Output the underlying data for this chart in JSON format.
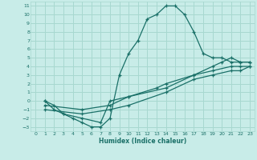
{
  "xlabel": "Humidex (Indice chaleur)",
  "bg_color": "#c8ece8",
  "grid_color": "#a8d8d0",
  "line_color": "#1a7068",
  "xlim": [
    -0.5,
    23.5
  ],
  "ylim": [
    -3.5,
    11.5
  ],
  "xticks": [
    0,
    1,
    2,
    3,
    4,
    5,
    6,
    7,
    8,
    9,
    10,
    11,
    12,
    13,
    14,
    15,
    16,
    17,
    18,
    19,
    20,
    21,
    22,
    23
  ],
  "yticks": [
    -3,
    -2,
    -1,
    0,
    1,
    2,
    3,
    4,
    5,
    6,
    7,
    8,
    9,
    10,
    11
  ],
  "line1_x": [
    1,
    2,
    3,
    4,
    5,
    6,
    7,
    8,
    9,
    10,
    11,
    12,
    13,
    14,
    15,
    16,
    17,
    18,
    19,
    20,
    21,
    22,
    23
  ],
  "line1_y": [
    0,
    -1,
    -1.5,
    -2,
    -2.5,
    -3,
    -3,
    -2,
    3,
    5.5,
    7,
    9.5,
    10,
    11,
    11,
    10,
    8,
    5.5,
    5,
    5,
    4.5,
    4.5,
    4.5
  ],
  "line2_x": [
    1,
    2,
    3,
    5,
    7,
    8,
    10,
    13,
    14,
    17,
    19,
    20,
    21,
    22,
    23
  ],
  "line2_y": [
    0,
    -0.5,
    -1.5,
    -2,
    -2.5,
    0,
    0.5,
    1.5,
    2,
    3,
    4,
    4.5,
    5,
    4.5,
    4.5
  ],
  "line3_x": [
    1,
    5,
    8,
    10,
    14,
    17,
    19,
    21,
    22,
    23
  ],
  "line3_y": [
    -0.5,
    -1,
    -0.5,
    0.5,
    1.5,
    3,
    3.5,
    4,
    4,
    4
  ],
  "line4_x": [
    1,
    5,
    8,
    10,
    14,
    17,
    19,
    21,
    22,
    23
  ],
  "line4_y": [
    -1,
    -1.5,
    -1,
    -0.5,
    1,
    2.5,
    3,
    3.5,
    3.5,
    4
  ]
}
